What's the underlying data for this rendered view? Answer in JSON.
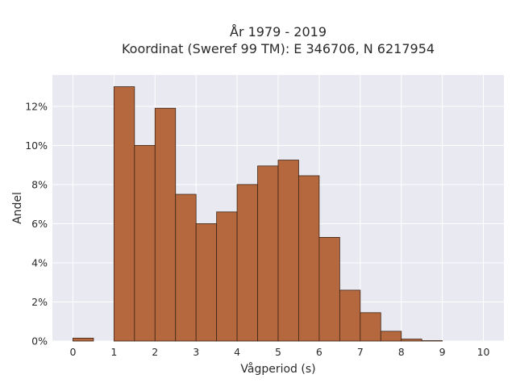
{
  "chart_data": {
    "type": "bar",
    "title": [
      "År 1979 - 2019",
      "Koordinat (Sweref 99 TM): E 346706, N 6217954"
    ],
    "xlabel": "Vågperiod (s)",
    "ylabel": "Andel",
    "xlim": [
      -0.5,
      10.5
    ],
    "ylim": [
      0,
      13.6
    ],
    "xticks": [
      0,
      1,
      2,
      3,
      4,
      5,
      6,
      7,
      8,
      9,
      10
    ],
    "yticks": [
      0,
      2,
      4,
      6,
      8,
      10,
      12
    ],
    "ytick_suffix": "%",
    "bin_width": 0.5,
    "bins": [
      {
        "start": 0.0,
        "value": 0.15
      },
      {
        "start": 0.5,
        "value": 0.0
      },
      {
        "start": 1.0,
        "value": 13.0
      },
      {
        "start": 1.5,
        "value": 10.0
      },
      {
        "start": 2.0,
        "value": 11.9
      },
      {
        "start": 2.5,
        "value": 7.5
      },
      {
        "start": 3.0,
        "value": 6.0
      },
      {
        "start": 3.5,
        "value": 6.6
      },
      {
        "start": 4.0,
        "value": 8.0
      },
      {
        "start": 4.5,
        "value": 8.95
      },
      {
        "start": 5.0,
        "value": 9.25
      },
      {
        "start": 5.5,
        "value": 8.45
      },
      {
        "start": 6.0,
        "value": 5.3
      },
      {
        "start": 6.5,
        "value": 2.6
      },
      {
        "start": 7.0,
        "value": 1.45
      },
      {
        "start": 7.5,
        "value": 0.5
      },
      {
        "start": 8.0,
        "value": 0.1
      },
      {
        "start": 8.5,
        "value": 0.02
      }
    ],
    "grid": true,
    "colors": {
      "bar_fill": "#b5683e",
      "bar_edge": "#3d2414",
      "plot_bg": "#e9e9f1",
      "grid": "#ffffff"
    }
  }
}
